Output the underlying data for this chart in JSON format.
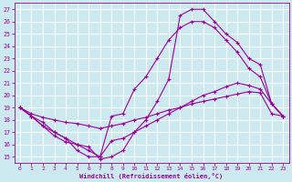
{
  "xlabel": "Windchill (Refroidissement éolien,°C)",
  "bg_color": "#cce9f0",
  "grid_color": "#ffffff",
  "line_color": "#990099",
  "xlim": [
    -0.5,
    23.5
  ],
  "ylim": [
    14.5,
    27.5
  ],
  "xticks": [
    0,
    1,
    2,
    3,
    4,
    5,
    6,
    7,
    8,
    9,
    10,
    11,
    12,
    13,
    14,
    15,
    16,
    17,
    18,
    19,
    20,
    21,
    22,
    23
  ],
  "yticks": [
    15,
    16,
    17,
    18,
    19,
    20,
    21,
    22,
    23,
    24,
    25,
    26,
    27
  ],
  "line1_x": [
    0,
    1,
    2,
    3,
    4,
    5,
    6,
    7,
    8,
    9,
    10,
    11,
    12,
    13,
    14,
    15,
    16,
    17,
    18,
    19,
    20,
    21,
    22,
    23
  ],
  "line1_y": [
    19.0,
    18.5,
    18.2,
    18.0,
    17.8,
    17.7,
    17.5,
    17.3,
    17.5,
    17.7,
    18.0,
    18.2,
    18.5,
    18.8,
    19.0,
    19.3,
    19.5,
    19.7,
    19.9,
    20.1,
    20.3,
    20.2,
    18.5,
    18.3
  ],
  "line2_x": [
    0,
    1,
    2,
    3,
    4,
    5,
    6,
    7,
    8,
    9,
    10,
    11,
    12,
    13,
    14,
    15,
    16,
    17,
    18,
    19,
    20,
    21,
    22,
    23
  ],
  "line2_y": [
    19.0,
    18.3,
    17.8,
    17.0,
    16.5,
    16.0,
    15.5,
    15.0,
    16.3,
    16.5,
    17.0,
    17.5,
    18.0,
    18.5,
    19.0,
    19.5,
    20.0,
    20.3,
    20.7,
    21.0,
    20.8,
    20.5,
    19.3,
    18.3
  ],
  "line3_x": [
    0,
    1,
    2,
    3,
    4,
    5,
    6,
    7,
    8,
    9,
    10,
    11,
    12,
    13,
    14,
    15,
    16,
    17,
    18,
    19,
    20,
    21,
    22,
    23
  ],
  "line3_y": [
    19.0,
    18.3,
    17.5,
    17.0,
    16.5,
    15.5,
    15.0,
    15.0,
    18.3,
    18.5,
    20.5,
    21.5,
    23.0,
    24.5,
    25.5,
    26.0,
    26.0,
    25.5,
    24.5,
    23.5,
    22.2,
    21.5,
    19.3,
    18.3
  ],
  "line4_x": [
    0,
    1,
    2,
    3,
    4,
    5,
    6,
    7,
    8,
    9,
    10,
    11,
    12,
    13,
    14,
    15,
    16,
    17,
    18,
    19,
    20,
    21,
    22,
    23
  ],
  "line4_y": [
    19.0,
    18.3,
    17.5,
    16.7,
    16.2,
    16.0,
    15.8,
    14.8,
    15.0,
    15.5,
    17.0,
    18.0,
    19.5,
    21.3,
    26.5,
    27.0,
    27.0,
    26.0,
    25.0,
    24.3,
    23.0,
    22.5,
    19.3,
    18.3
  ]
}
